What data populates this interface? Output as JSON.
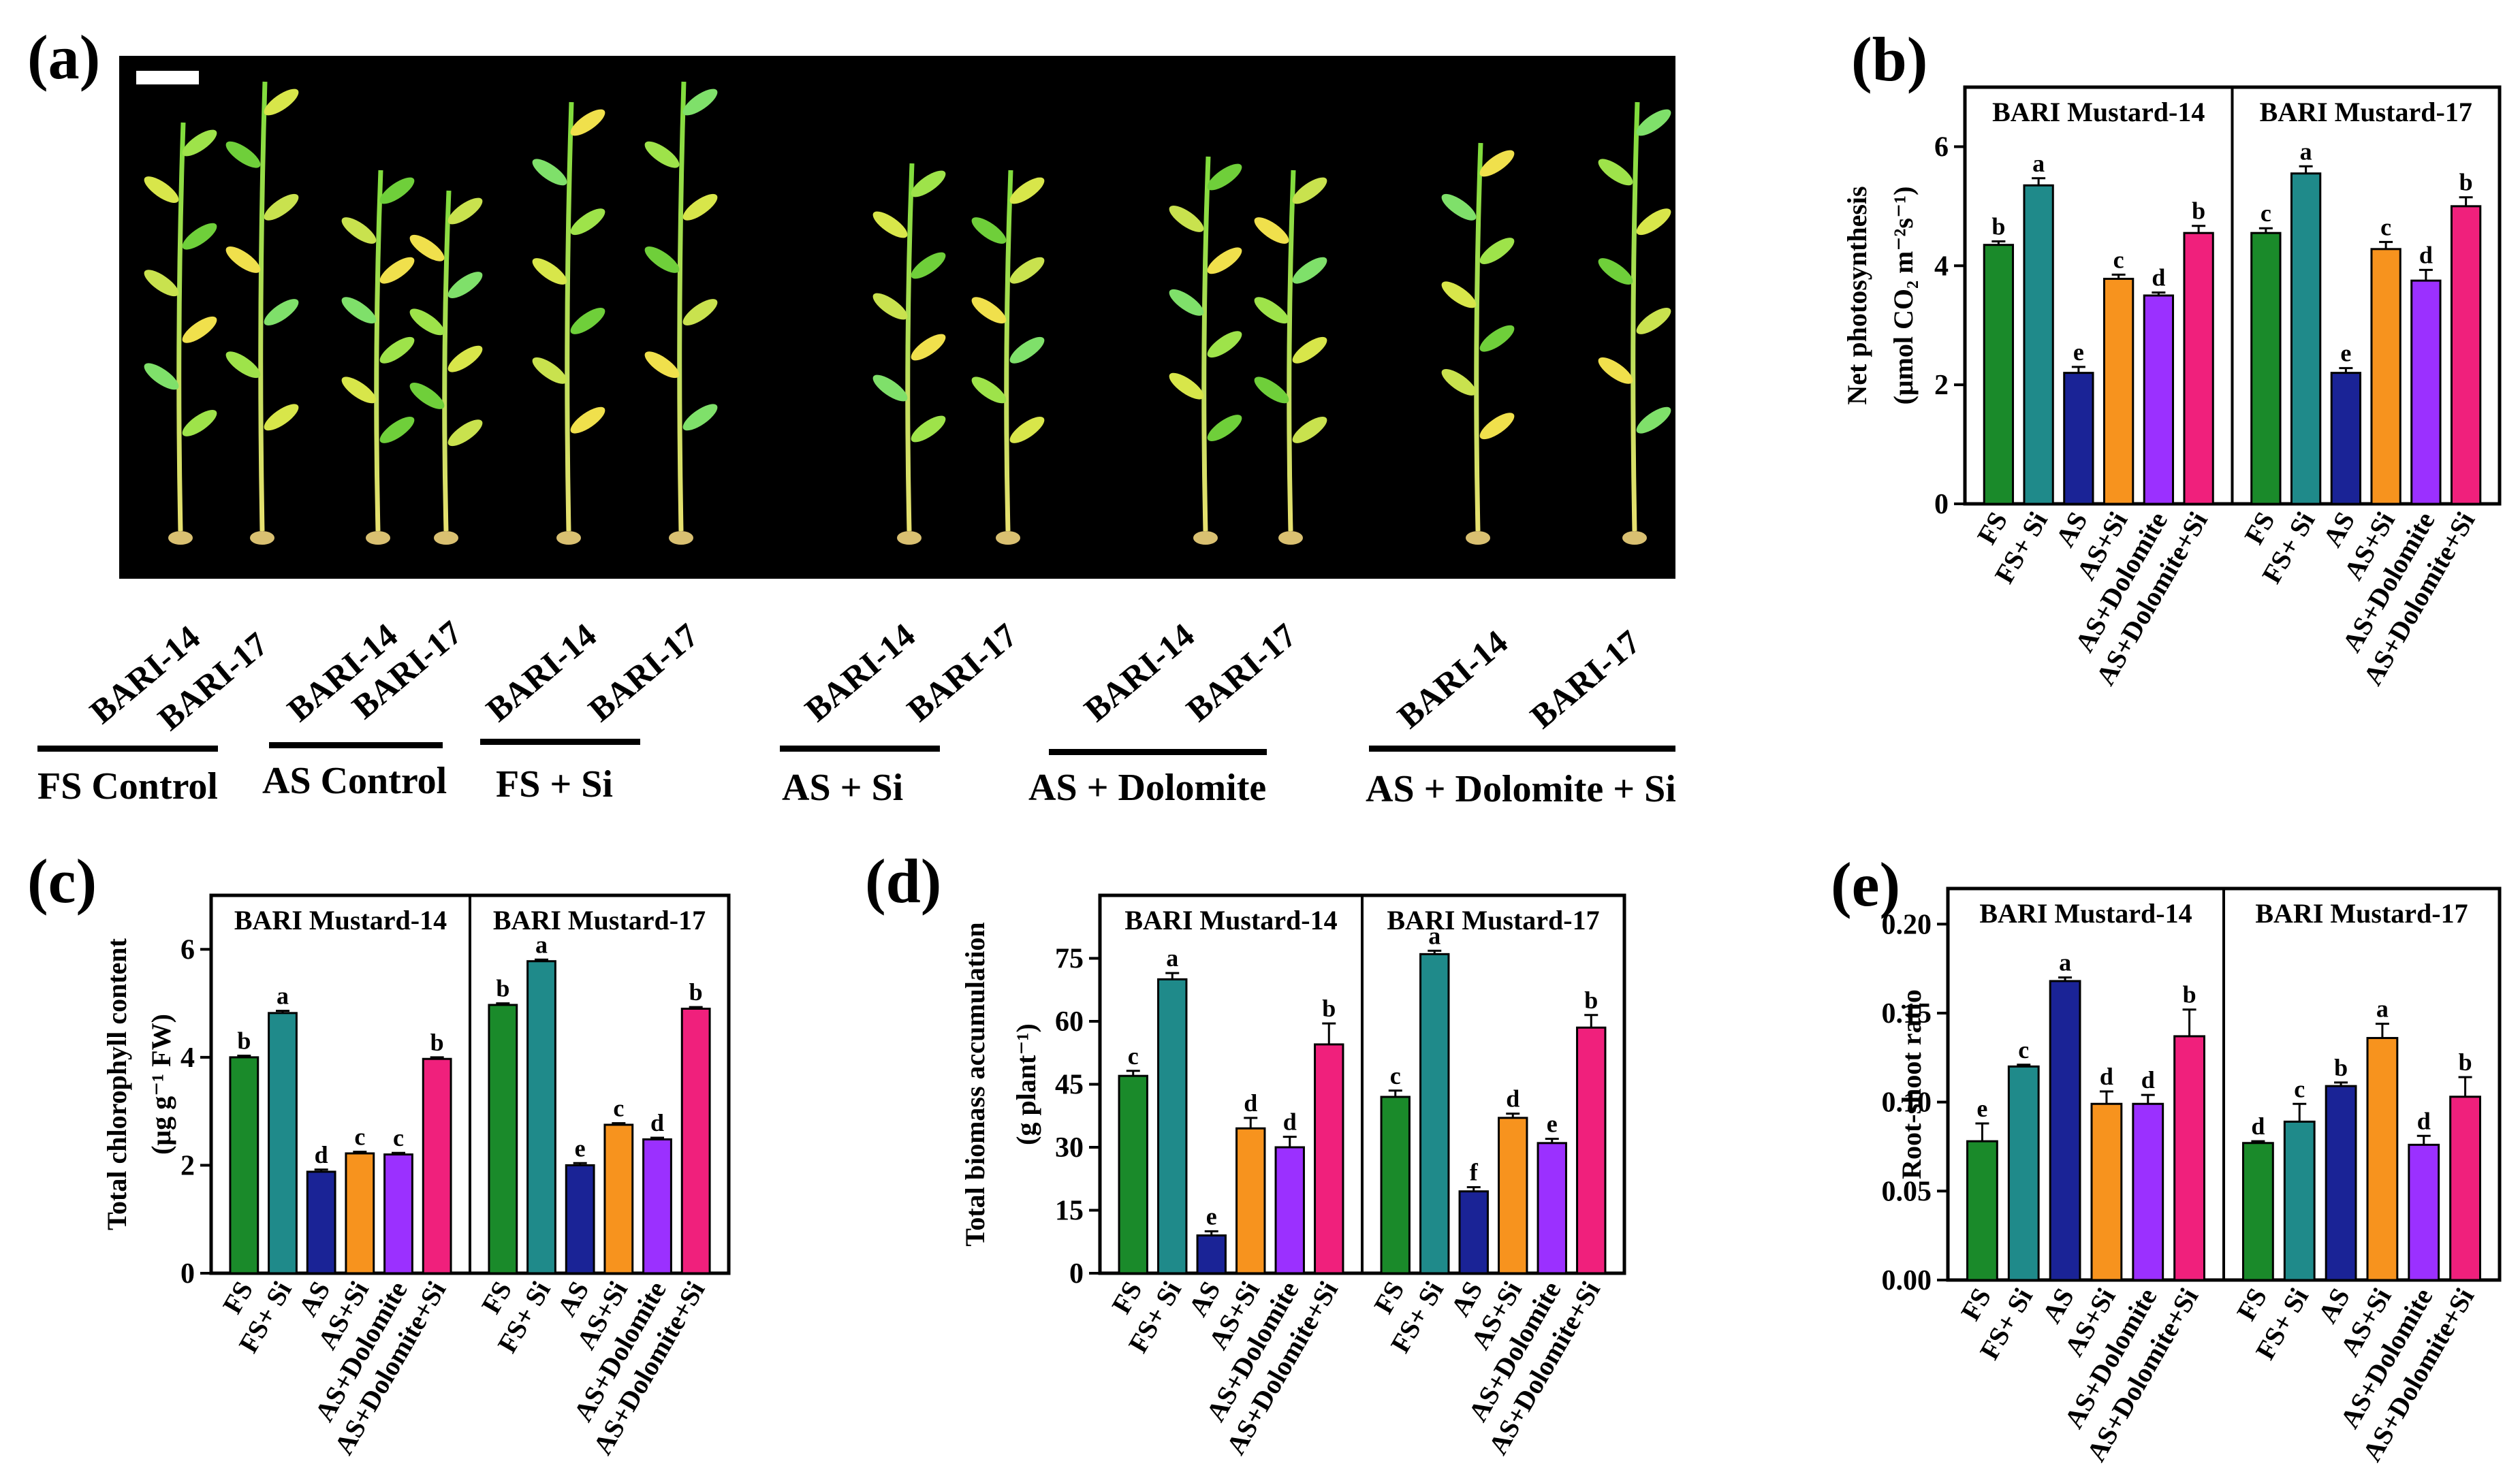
{
  "photo": {
    "panel_label": "(a)",
    "cultivar_labels": [
      "BARI-14",
      "BARI-17",
      "BARI-14",
      "BARI-17",
      "BARI-14",
      "BARI-17",
      "BARI-14",
      "BARI-17",
      "BARI-14",
      "BARI-17",
      "BARI-14",
      "BARI-17"
    ],
    "group_labels": [
      "FS Control",
      "AS Control",
      "FS + Si",
      "AS + Si",
      "AS + Dolomite",
      "AS + Dolomite + Si"
    ]
  },
  "colors": {
    "FS": "#1a8a2a",
    "FS+ Si": "#1f8a8a",
    "AS": "#1a2396",
    "AS+Si": "#f7931e",
    "AS+Dolomite": "#9b30ff",
    "AS+Dolomite+Si": "#f0207c"
  },
  "chart_data": [
    {
      "id": "b",
      "panel_label": "(b)",
      "type": "bar",
      "ylabel": "Net photosynthesis",
      "ylabel_unit": "(μmol CO₂ m⁻²s⁻¹)",
      "ylim": [
        0,
        7
      ],
      "yticks": [
        "0",
        "2",
        "4",
        "6"
      ],
      "ytick_values": [
        0,
        2,
        4,
        6
      ],
      "categories": [
        "FS",
        "FS+ Si",
        "AS",
        "AS+Si",
        "AS+Dolomite",
        "AS+Dolomite+Si"
      ],
      "groups": [
        {
          "name": "BARI Mustard-14",
          "values": [
            4.35,
            5.35,
            2.2,
            3.78,
            3.5,
            4.55
          ],
          "errors": [
            0.06,
            0.12,
            0.1,
            0.07,
            0.05,
            0.12
          ],
          "letters": [
            "b",
            "a",
            "e",
            "c",
            "d",
            "b"
          ]
        },
        {
          "name": "BARI Mustard-17",
          "values": [
            4.55,
            5.55,
            2.2,
            4.28,
            3.75,
            5.0
          ],
          "errors": [
            0.08,
            0.12,
            0.08,
            0.12,
            0.18,
            0.15
          ],
          "letters": [
            "c",
            "a",
            "e",
            "c",
            "d",
            "b"
          ]
        }
      ]
    },
    {
      "id": "c",
      "panel_label": "(c)",
      "type": "bar",
      "ylabel": "Total chlorophyll content",
      "ylabel_unit": "(μg g⁻¹ FW)",
      "ylim": [
        0,
        7
      ],
      "yticks": [
        "0",
        "2",
        "4",
        "6"
      ],
      "ytick_values": [
        0,
        2,
        4,
        6
      ],
      "categories": [
        "FS",
        "FS+ Si",
        "AS",
        "AS+Si",
        "AS+Dolomite",
        "AS+Dolomite+Si"
      ],
      "groups": [
        {
          "name": "BARI Mustard-14",
          "values": [
            4.0,
            4.82,
            1.88,
            2.22,
            2.2,
            3.97
          ],
          "errors": [
            0.03,
            0.04,
            0.04,
            0.03,
            0.03,
            0.03
          ],
          "letters": [
            "b",
            "a",
            "d",
            "c",
            "c",
            "b"
          ]
        },
        {
          "name": "BARI Mustard-17",
          "values": [
            4.97,
            5.78,
            2.0,
            2.75,
            2.48,
            4.9
          ],
          "errors": [
            0.03,
            0.03,
            0.04,
            0.03,
            0.03,
            0.03
          ],
          "letters": [
            "b",
            "a",
            "e",
            "c",
            "d",
            "b"
          ]
        }
      ]
    },
    {
      "id": "d",
      "panel_label": "(d)",
      "type": "bar",
      "ylabel": "Total biomass accumulation",
      "ylabel_unit": "(g plant⁻¹)",
      "ylim": [
        0,
        90
      ],
      "yticks": [
        "0",
        "15",
        "30",
        "45",
        "60",
        "75"
      ],
      "ytick_values": [
        0,
        15,
        30,
        45,
        60,
        75
      ],
      "categories": [
        "FS",
        "FS+ Si",
        "AS",
        "AS+Si",
        "AS+Dolomite",
        "AS+Dolomite+Si"
      ],
      "groups": [
        {
          "name": "BARI Mustard-14",
          "values": [
            47,
            70,
            9,
            34.5,
            30,
            54.5
          ],
          "errors": [
            1.2,
            1.5,
            1.0,
            2.5,
            2.5,
            5.0
          ],
          "letters": [
            "c",
            "a",
            "e",
            "d",
            "d",
            "b"
          ]
        },
        {
          "name": "BARI Mustard-17",
          "values": [
            42,
            76,
            19.5,
            37,
            31,
            58.5
          ],
          "errors": [
            1.5,
            0.8,
            1.0,
            1.0,
            1.0,
            3.0
          ],
          "letters": [
            "c",
            "a",
            "f",
            "d",
            "e",
            "b"
          ]
        }
      ]
    },
    {
      "id": "e",
      "panel_label": "(e)",
      "type": "bar",
      "ylabel": "Root-shoot ratio",
      "ylabel_unit": "",
      "ylim": [
        0,
        0.22
      ],
      "yticks": [
        "0.00",
        "0.05",
        "0.10",
        "0.15",
        "0.20"
      ],
      "ytick_values": [
        0,
        0.05,
        0.1,
        0.15,
        0.2
      ],
      "categories": [
        "FS",
        "FS+ Si",
        "AS",
        "AS+Si",
        "AS+Dolomite",
        "AS+Dolomite+Si"
      ],
      "groups": [
        {
          "name": "BARI Mustard-14",
          "values": [
            0.078,
            0.12,
            0.168,
            0.099,
            0.099,
            0.137
          ],
          "errors": [
            0.01,
            0.001,
            0.002,
            0.007,
            0.005,
            0.015
          ],
          "letters": [
            "e",
            "c",
            "a",
            "d",
            "d",
            "b"
          ]
        },
        {
          "name": "BARI Mustard-17",
          "values": [
            0.077,
            0.089,
            0.109,
            0.136,
            0.076,
            0.103
          ],
          "errors": [
            0.001,
            0.01,
            0.002,
            0.008,
            0.005,
            0.011
          ],
          "letters": [
            "d",
            "c",
            "b",
            "a",
            "d",
            "b"
          ]
        }
      ]
    }
  ]
}
